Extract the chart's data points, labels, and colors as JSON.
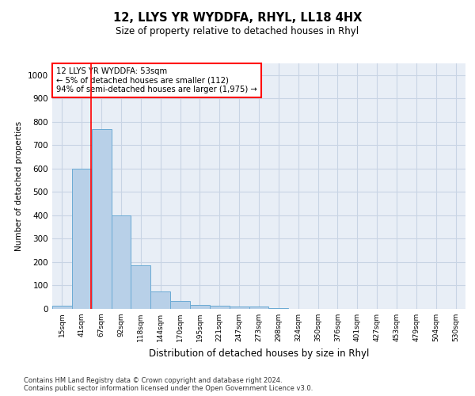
{
  "title": "12, LLYS YR WYDDFA, RHYL, LL18 4HX",
  "subtitle": "Size of property relative to detached houses in Rhyl",
  "xlabel": "Distribution of detached houses by size in Rhyl",
  "ylabel": "Number of detached properties",
  "categories": [
    "15sqm",
    "41sqm",
    "67sqm",
    "92sqm",
    "118sqm",
    "144sqm",
    "170sqm",
    "195sqm",
    "221sqm",
    "247sqm",
    "273sqm",
    "298sqm",
    "324sqm",
    "350sqm",
    "376sqm",
    "401sqm",
    "427sqm",
    "453sqm",
    "479sqm",
    "504sqm",
    "530sqm"
  ],
  "values": [
    12,
    600,
    770,
    400,
    185,
    75,
    35,
    18,
    12,
    10,
    10,
    5,
    0,
    0,
    0,
    0,
    0,
    0,
    0,
    0,
    0
  ],
  "bar_color": "#b8d0e8",
  "bar_edge_color": "#6aaad4",
  "annotation_text_line1": "12 LLYS YR WYDDFA: 53sqm",
  "annotation_text_line2": "← 5% of detached houses are smaller (112)",
  "annotation_text_line3": "94% of semi-detached houses are larger (1,975) →",
  "ylim": [
    0,
    1050
  ],
  "yticks": [
    0,
    100,
    200,
    300,
    400,
    500,
    600,
    700,
    800,
    900,
    1000
  ],
  "grid_color": "#c8d4e4",
  "background_color": "#e8eef6",
  "footer_line1": "Contains HM Land Registry data © Crown copyright and database right 2024.",
  "footer_line2": "Contains public sector information licensed under the Open Government Licence v3.0."
}
